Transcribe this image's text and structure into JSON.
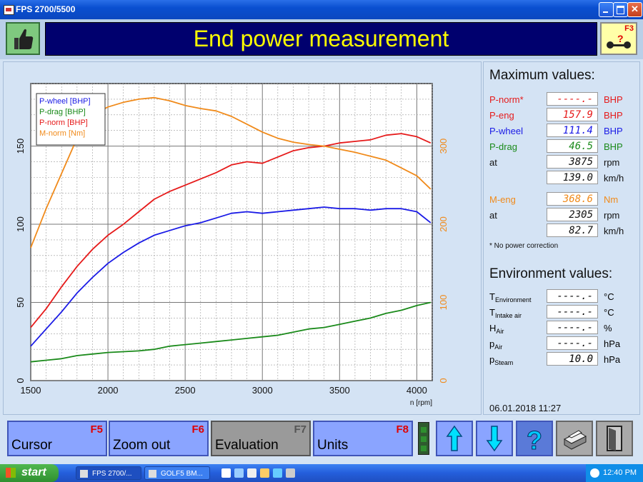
{
  "window": {
    "title": "FPS 2700/5500"
  },
  "header": {
    "title": "End power measurement",
    "f3_key": "F3"
  },
  "chart_data": {
    "type": "line",
    "x_unit_label": "n [rpm]",
    "xlim": [
      1500,
      4100
    ],
    "x_ticks": [
      1500,
      2000,
      2500,
      3000,
      3500,
      4000
    ],
    "left_axis": {
      "ylim": [
        0,
        190
      ],
      "ticks": [
        0,
        50,
        100,
        150
      ]
    },
    "right_axis": {
      "ylim": [
        0,
        380
      ],
      "ticks": [
        0,
        100,
        200,
        300
      ]
    },
    "legend": [
      "P-wheel [BHP]",
      "P-drag [BHP]",
      "P-norm [BHP]",
      "M-norm [Nm]"
    ],
    "legend_position": "top-left",
    "grid": true,
    "x": [
      1500,
      1600,
      1700,
      1800,
      1900,
      2000,
      2100,
      2200,
      2300,
      2400,
      2500,
      2600,
      2700,
      2800,
      2900,
      3000,
      3100,
      3200,
      3300,
      3400,
      3500,
      3600,
      3700,
      3800,
      3900,
      4000,
      4090
    ],
    "series": [
      {
        "name": "P-wheel [BHP]",
        "axis": "left",
        "color": "#1a1ae6",
        "values": [
          22,
          33,
          44,
          56,
          66,
          75,
          82,
          88,
          93,
          96,
          99,
          101,
          104,
          107,
          108,
          107,
          108,
          109,
          110,
          111,
          110,
          110,
          109,
          110,
          110,
          108,
          101
        ]
      },
      {
        "name": "P-drag [BHP]",
        "axis": "left",
        "color": "#1a8a1a",
        "values": [
          12,
          13,
          14,
          16,
          17,
          18,
          18.5,
          19,
          20,
          22,
          23,
          24,
          25,
          26,
          27,
          28,
          29,
          31,
          33,
          34,
          36,
          38,
          40,
          43,
          45,
          48,
          50
        ]
      },
      {
        "name": "P-norm [BHP]",
        "axis": "left",
        "color": "#e61a1a",
        "values": [
          34,
          46,
          60,
          73,
          84,
          93,
          100,
          108,
          116,
          121,
          125,
          129,
          133,
          138,
          140,
          139,
          143,
          147,
          149,
          150,
          152,
          153,
          154,
          157,
          158,
          156,
          152
        ]
      },
      {
        "name": "M-norm [Nm]",
        "axis": "right",
        "color": "#f08a1a",
        "values": [
          170,
          220,
          265,
          310,
          340,
          350,
          356,
          360,
          362,
          358,
          352,
          348,
          345,
          338,
          328,
          318,
          310,
          305,
          302,
          300,
          296,
          292,
          287,
          282,
          272,
          262,
          245
        ]
      }
    ]
  },
  "max_values": {
    "heading": "Maximum values:",
    "rows": [
      {
        "label": "P-norm*",
        "value": "----.-",
        "unit": "BHP",
        "color": "#e61a1a"
      },
      {
        "label": "P-eng",
        "value": "157.9",
        "unit": "BHP",
        "color": "#e61a1a"
      },
      {
        "label": "P-wheel",
        "value": "111.4",
        "unit": "BHP",
        "color": "#1a1ae6"
      },
      {
        "label": "P-drag",
        "value": "46.5",
        "unit": "BHP",
        "color": "#1a8a1a"
      },
      {
        "label": "at",
        "value": "3875",
        "unit": "rpm",
        "color": "#111111"
      },
      {
        "label": "",
        "value": "139.0",
        "unit": "km/h",
        "color": "#111111"
      },
      {
        "label": "M-eng",
        "value": "368.6",
        "unit": "Nm",
        "color": "#f08a1a"
      },
      {
        "label": "at",
        "value": "2305",
        "unit": "rpm",
        "color": "#111111"
      },
      {
        "label": "",
        "value": "82.7",
        "unit": "km/h",
        "color": "#111111"
      }
    ],
    "note": "* No power correction"
  },
  "environment": {
    "heading": "Environment values:",
    "rows": [
      {
        "sym": "T",
        "sub": "Environment",
        "value": "----.-",
        "unit": "°C"
      },
      {
        "sym": "T",
        "sub": "Intake air",
        "value": "----.-",
        "unit": "°C"
      },
      {
        "sym": "H",
        "sub": "Air",
        "value": "----.-",
        "unit": "%"
      },
      {
        "sym": "p",
        "sub": "Air",
        "value": "----.-",
        "unit": "hPa"
      },
      {
        "sym": "p",
        "sub": "Steam",
        "value": "10.0",
        "unit": "hPa"
      }
    ]
  },
  "datetime": "06.01.2018   11:27",
  "function_keys": [
    {
      "label": "Cursor",
      "key": "F5"
    },
    {
      "label": "Zoom out",
      "key": "F6"
    },
    {
      "label": "Evaluation",
      "key": "F7"
    },
    {
      "label": "Units",
      "key": "F8"
    }
  ],
  "taskbar": {
    "start": "start",
    "tasks": [
      "FPS 2700/...",
      "GOLF5 BM..."
    ],
    "clock": "12:40 PM"
  }
}
